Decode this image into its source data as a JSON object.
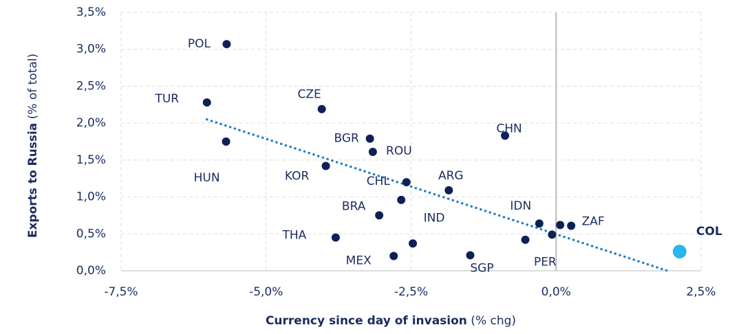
{
  "chart_data": {
    "type": "scatter",
    "xlabel": {
      "bold": "Currency since day of invasion",
      "rest": " (% chg)"
    },
    "ylabel": {
      "bold": "Exports to Russia",
      "rest": " (% of total)"
    },
    "xlim": [
      -7.5,
      2.5
    ],
    "ylim": [
      0,
      3.5
    ],
    "xticks": [
      {
        "value": -7.5,
        "label": "-7,5%"
      },
      {
        "value": -5,
        "label": "-5,0%"
      },
      {
        "value": -2.5,
        "label": "-2,5%"
      },
      {
        "value": 0,
        "label": "0,0%"
      },
      {
        "value": 2.5,
        "label": "2,5%"
      }
    ],
    "yticks": [
      {
        "value": 0,
        "label": "0,0%"
      },
      {
        "value": 0.5,
        "label": "0,5%"
      },
      {
        "value": 1,
        "label": "1,0%"
      },
      {
        "value": 1.5,
        "label": "1,5%"
      },
      {
        "value": 2,
        "label": "2,0%"
      },
      {
        "value": 2.5,
        "label": "2,5%"
      },
      {
        "value": 3,
        "label": "3,0%"
      },
      {
        "value": 3.5,
        "label": "3,5%"
      }
    ],
    "grid": true,
    "series": [
      {
        "color": "#0d2157",
        "labels": [
          "POL",
          "TUR",
          "HUN",
          "CZE",
          "BGR",
          "ROU",
          "KOR",
          "CHL",
          null,
          "ARG",
          "BRA",
          "IND",
          "THA",
          "MEX",
          "SGP",
          "CHN",
          "IDN",
          null,
          "ZAF",
          null,
          "PER"
        ],
        "x": [
          -5.68,
          -6.02,
          -5.69,
          -4.04,
          -3.21,
          -3.16,
          -3.97,
          -2.58,
          -2.67,
          -1.85,
          -3.05,
          -2.47,
          -3.8,
          -2.8,
          -1.48,
          -0.88,
          -0.29,
          0.07,
          0.26,
          -0.53,
          -0.07
        ],
        "values": [
          3.07,
          2.28,
          1.75,
          2.19,
          1.79,
          1.61,
          1.42,
          1.2,
          0.96,
          1.09,
          0.75,
          0.37,
          0.45,
          0.2,
          0.21,
          1.83,
          0.64,
          0.62,
          0.61,
          0.42,
          0.49
        ]
      },
      {
        "color": "#29b6f0",
        "labels": [
          "COL"
        ],
        "x": [
          2.13
        ],
        "values": [
          0.26
        ]
      }
    ],
    "trendline": {
      "color": "#1f7ec2",
      "x": [
        -6.02,
        1.92
      ],
      "values": [
        2.05,
        0
      ]
    }
  }
}
